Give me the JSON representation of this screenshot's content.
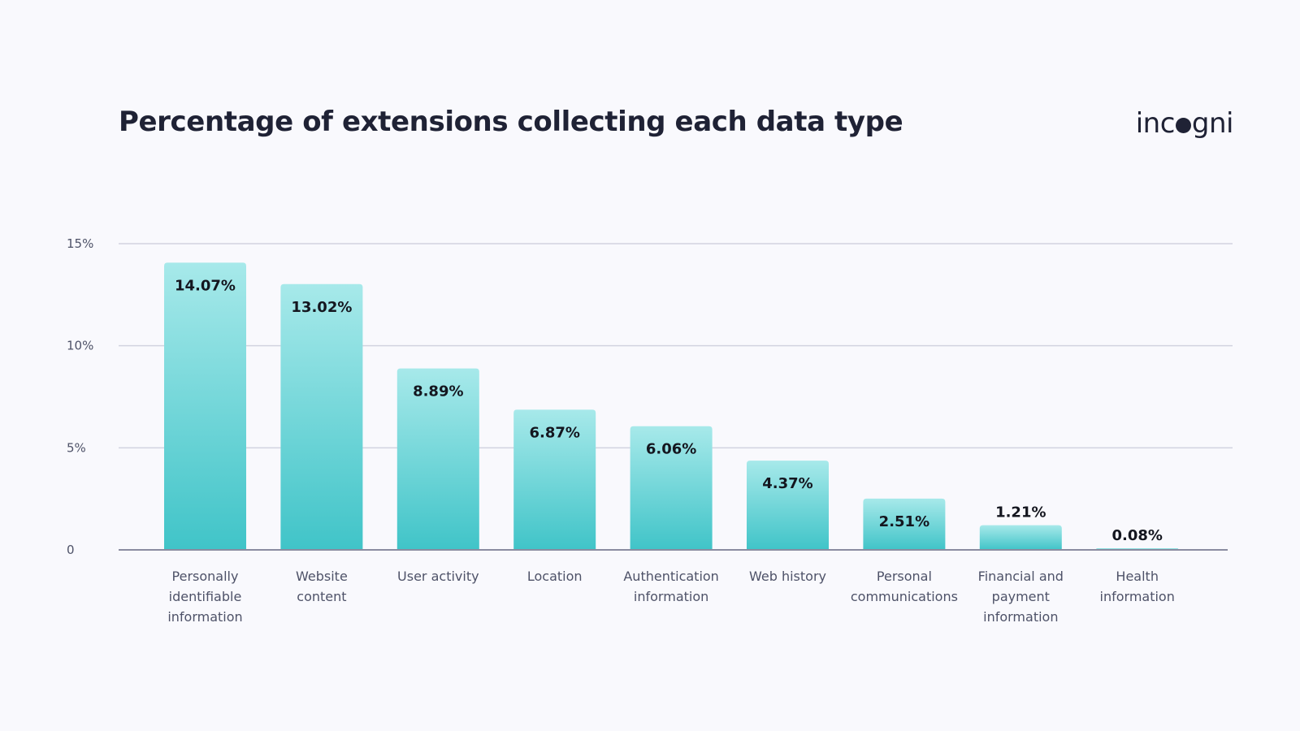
{
  "brand": {
    "prefix": "inc",
    "suffix": "gni",
    "dot_color": "#1f2235"
  },
  "colors": {
    "bar_top": "#a7e9ea",
    "bar_bottom": "#40c4c8",
    "grid": "#d2d3e0",
    "axis": "#8a8ca0"
  },
  "chart_data": {
    "type": "bar",
    "title": "Percentage of extensions collecting each data type",
    "xlabel": "",
    "ylabel": "",
    "ylim": [
      0,
      15
    ],
    "y_ticks": [
      {
        "value": 0,
        "label": "0"
      },
      {
        "value": 5,
        "label": "5%"
      },
      {
        "value": 10,
        "label": "10%"
      },
      {
        "value": 15,
        "label": "15%"
      }
    ],
    "grid": true,
    "categories": [
      [
        "Personally",
        "identifiable",
        "information"
      ],
      [
        "Website",
        "content"
      ],
      [
        "User activity"
      ],
      [
        "Location"
      ],
      [
        "Authentication",
        "information"
      ],
      [
        "Web history"
      ],
      [
        "Personal",
        "communications"
      ],
      [
        "Financial and",
        "payment",
        "information"
      ],
      [
        "Health",
        "information"
      ]
    ],
    "values": [
      14.07,
      13.02,
      8.89,
      6.87,
      6.06,
      4.37,
      2.51,
      1.21,
      0.08
    ],
    "value_labels": [
      "14.07%",
      "13.02%",
      "8.89%",
      "6.87%",
      "6.06%",
      "4.37%",
      "2.51%",
      "1.21%",
      "0.08%"
    ]
  }
}
